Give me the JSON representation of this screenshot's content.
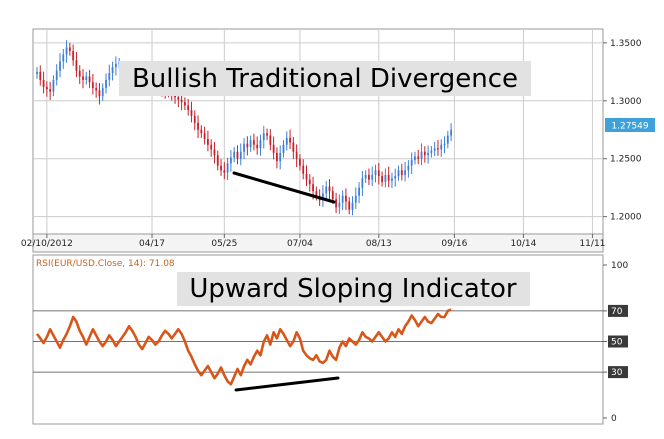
{
  "colors": {
    "up_candle": "#3d7fd6",
    "down_candle": "#c8202a",
    "rsi_line": "#d9561a",
    "grid": "#cccccc",
    "frame": "#9a9a9a",
    "last_price_tag": "#3ea1d9",
    "level_tag": "#3a3a3a",
    "banner_bg": "#e2e2e2",
    "trendline": "#000000"
  },
  "chart_data": [
    {
      "type": "candlestick",
      "title": "",
      "annotation": "Bullish Traditional Divergence",
      "y_ticks": [
        1.2,
        1.25,
        1.3,
        1.35
      ],
      "y_tick_labels": [
        "1.2000",
        "1.2500",
        "1.3000",
        "1.3500"
      ],
      "ylim": [
        1.185,
        1.362
      ],
      "last_price": 1.27549,
      "last_price_label": "1.27549",
      "x_tick_labels": [
        "02/10/2012",
        "04/17",
        "05/25",
        "07/04",
        "08/13",
        "09/16",
        "10/14",
        "11/11"
      ],
      "x_tick_index": [
        3,
        35,
        57,
        80,
        104,
        127,
        148,
        169
      ],
      "x_count": 172,
      "closes": [
        1.325,
        1.318,
        1.312,
        1.31,
        1.308,
        1.318,
        1.326,
        1.334,
        1.34,
        1.346,
        1.343,
        1.335,
        1.326,
        1.321,
        1.318,
        1.321,
        1.316,
        1.311,
        1.309,
        1.304,
        1.311,
        1.318,
        1.324,
        1.329,
        1.332,
        1.333,
        1.333,
        1.332,
        1.33,
        1.328,
        1.326,
        1.324,
        1.322,
        1.32,
        1.318,
        1.314,
        1.312,
        1.311,
        1.31,
        1.309,
        1.307,
        1.305,
        1.303,
        1.301,
        1.299,
        1.296,
        1.292,
        1.287,
        1.281,
        1.275,
        1.272,
        1.267,
        1.262,
        1.258,
        1.253,
        1.244,
        1.24,
        1.238,
        1.246,
        1.251,
        1.256,
        1.25,
        1.256,
        1.263,
        1.26,
        1.266,
        1.262,
        1.259,
        1.266,
        1.272,
        1.27,
        1.262,
        1.255,
        1.248,
        1.255,
        1.262,
        1.268,
        1.264,
        1.256,
        1.25,
        1.244,
        1.237,
        1.232,
        1.228,
        1.222,
        1.218,
        1.214,
        1.22,
        1.226,
        1.222,
        1.215,
        1.208,
        1.212,
        1.218,
        1.213,
        1.206,
        1.212,
        1.218,
        1.225,
        1.233,
        1.236,
        1.232,
        1.236,
        1.24,
        1.235,
        1.23,
        1.236,
        1.231,
        1.233,
        1.235,
        1.24,
        1.236,
        1.24,
        1.244,
        1.249,
        1.252,
        1.25,
        1.256,
        1.253,
        1.255,
        1.257,
        1.259,
        1.258,
        1.262,
        1.263,
        1.27,
        1.275
      ],
      "visible_ranges": [
        [
          0,
          25
        ],
        [
          35,
          126
        ]
      ]
    },
    {
      "type": "line",
      "title": "RSI(EUR/USD.Close, 14): 71.08",
      "annotation": "Upward Sloping Indicator",
      "y_ticks": [
        0,
        30,
        50,
        70,
        100
      ],
      "y_tick_labels": [
        "0",
        "30",
        "50",
        "70",
        "100"
      ],
      "level_lines": [
        30,
        50,
        70
      ],
      "ylim": [
        0,
        100
      ],
      "x_count": 172,
      "series": [
        {
          "name": "",
          "start_index": 0,
          "values": [
            55,
            52,
            49,
            53,
            58,
            54,
            50,
            46,
            51,
            55,
            60,
            66,
            63,
            57,
            53,
            48,
            53,
            58,
            54,
            50,
            47,
            50,
            54,
            51,
            47,
            50,
            53,
            56,
            60,
            57,
            53,
            48,
            45,
            49,
            53,
            51,
            48,
            50,
            54,
            57,
            55,
            52,
            55,
            58,
            55,
            50,
            44,
            40,
            35,
            31,
            28,
            31,
            34,
            30,
            26,
            29,
            33,
            28,
            24,
            22,
            27,
            32,
            28,
            34,
            38,
            35,
            40,
            44,
            41,
            50,
            54,
            48,
            56,
            52,
            58,
            55,
            51,
            47,
            50,
            56,
            52,
            44,
            41,
            39,
            38,
            41,
            37,
            36,
            38,
            44,
            40,
            38,
            46,
            50,
            47,
            52,
            50,
            48,
            51,
            56,
            53,
            52,
            50,
            53,
            56,
            53,
            50,
            52,
            56,
            53,
            58,
            55,
            60,
            63,
            67,
            64,
            60,
            63,
            66,
            63,
            62,
            65,
            68,
            66,
            66,
            70,
            71
          ]
        }
      ]
    }
  ],
  "banners": {
    "top": "Bullish Traditional Divergence",
    "bottom": "Upward Sloping Indicator"
  }
}
